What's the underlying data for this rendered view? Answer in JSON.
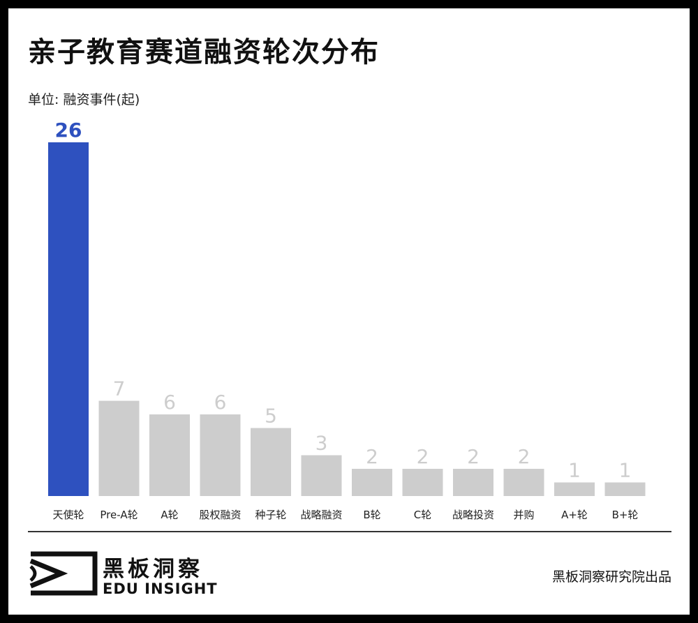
{
  "title": "亲子教育赛道融资轮次分布",
  "unit_label": "单位: 融资事件(起)",
  "colors": {
    "highlight": "#2E51BF",
    "default": "#CDCDCD",
    "highlight_label": "#2E51BF",
    "default_label": "#CDCDCD"
  },
  "chart_data": {
    "type": "bar",
    "title": "亲子教育赛道融资轮次分布",
    "ylabel": "单位: 融资事件(起)",
    "xlabel": "",
    "categories": [
      "天使轮",
      "Pre-A轮",
      "A轮",
      "股权融资",
      "种子轮",
      "战略融资",
      "B轮",
      "C轮",
      "战略投资",
      "并购",
      "A+轮",
      "B+轮"
    ],
    "values": [
      26,
      7,
      6,
      6,
      5,
      3,
      2,
      2,
      2,
      2,
      1,
      1
    ],
    "highlight_index": 0,
    "ylim": [
      0,
      26
    ],
    "grid": false,
    "legend": "none"
  },
  "footer": {
    "brand_cn": "黑板洞察",
    "brand_en": "EDU INSIGHT",
    "credit": "黑板洞察研究院出品",
    "logo_icon": "edu-insight-logo-icon"
  }
}
